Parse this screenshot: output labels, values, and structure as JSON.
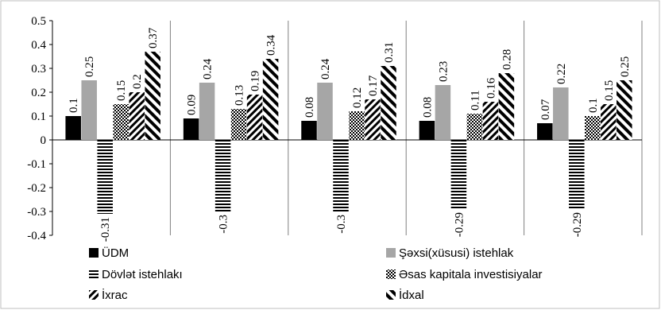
{
  "chart_data": {
    "type": "bar",
    "ylim": [
      -0.4,
      0.5
    ],
    "yticks": [
      "0.5",
      "0.4",
      "0.3",
      "0.2",
      "0.1",
      "0",
      "-0.1",
      "-0.2",
      "-0.3",
      "-0.4"
    ],
    "grid": "vertical category dividers",
    "legend_position": "bottom",
    "group_count": 5,
    "series": [
      {
        "name": "ÜDM",
        "pattern": "solid-black",
        "values": [
          0.1,
          0.09,
          0.08,
          0.08,
          0.07
        ],
        "labels": [
          "0.1",
          "0.09",
          "0.08",
          "0.08",
          "0.07"
        ]
      },
      {
        "name": "Şəxsi(xüsusi) istehlak",
        "pattern": "solid-gray",
        "values": [
          0.25,
          0.24,
          0.24,
          0.23,
          0.22
        ],
        "labels": [
          "0.25",
          "0.24",
          "0.24",
          "0.23",
          "0.22"
        ]
      },
      {
        "name": "Dövlət istehlakı",
        "pattern": "horizontal-stripes",
        "values": [
          -0.31,
          -0.3,
          -0.3,
          -0.29,
          -0.29
        ],
        "labels": [
          "-0.31",
          "-0.3",
          "-0.3",
          "-0.29",
          "-0.29"
        ]
      },
      {
        "name": "Əsas kapitala investisiyalar",
        "pattern": "checker",
        "values": [
          0.15,
          0.13,
          0.12,
          0.11,
          0.1
        ],
        "labels": [
          "0.15",
          "0.13",
          "0.12",
          "0.11",
          "0.1"
        ]
      },
      {
        "name": "İxrac",
        "pattern": "diagonal-hatch",
        "values": [
          0.2,
          0.19,
          0.17,
          0.16,
          0.15
        ],
        "labels": [
          "0.2",
          "0.19",
          "0.17",
          "0.16",
          "0.15"
        ]
      },
      {
        "name": "İdxal",
        "pattern": "wide-diagonal-hatch",
        "values": [
          0.37,
          0.34,
          0.31,
          0.28,
          0.25
        ],
        "labels": [
          "0.37",
          "0.34",
          "0.31",
          "0.28",
          "0.25"
        ]
      }
    ]
  }
}
